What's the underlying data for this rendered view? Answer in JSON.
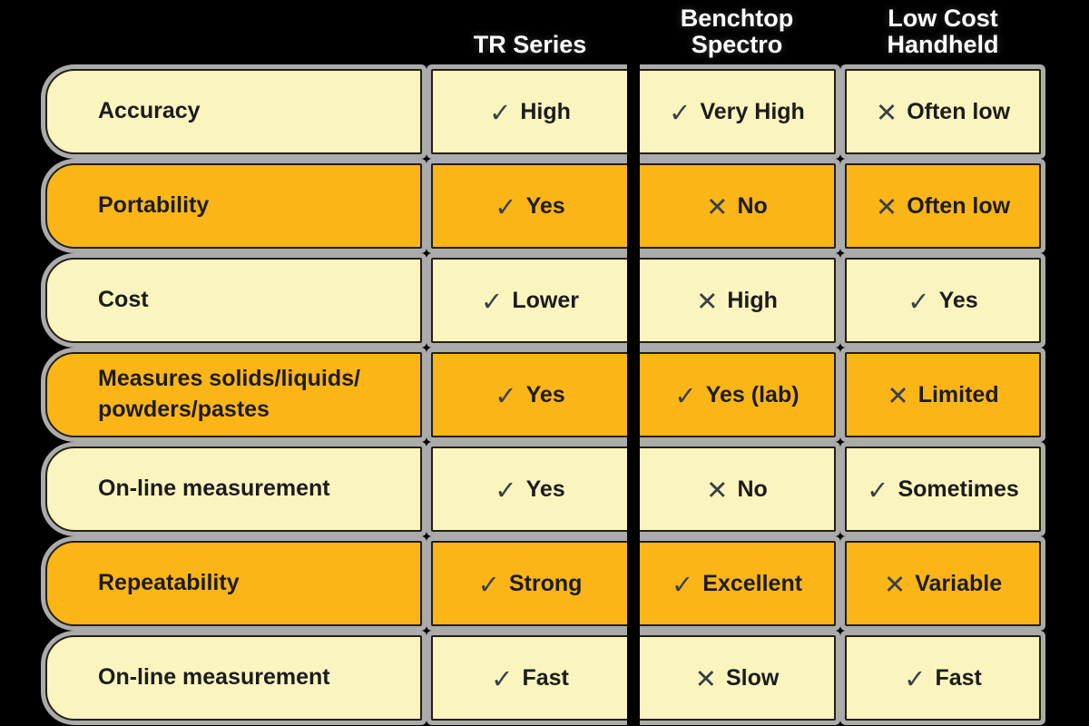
{
  "chart_data": {
    "type": "table",
    "title": "",
    "columns": [
      "TR Series",
      "Benchtop\nSpectro",
      "Low Cost\nHandheld"
    ],
    "rows": [
      {
        "label": "Accuracy",
        "cells": [
          {
            "icon": "check",
            "text": "High"
          },
          {
            "icon": "check",
            "text": "Very High"
          },
          {
            "icon": "cross",
            "text": "Often low"
          }
        ]
      },
      {
        "label": "Portability",
        "cells": [
          {
            "icon": "check",
            "text": "Yes"
          },
          {
            "icon": "cross",
            "text": "No"
          },
          {
            "icon": "cross",
            "text": "Often low"
          }
        ]
      },
      {
        "label": "Cost",
        "cells": [
          {
            "icon": "check",
            "text": "Lower"
          },
          {
            "icon": "cross",
            "text": "High"
          },
          {
            "icon": "check",
            "text": "Yes"
          }
        ]
      },
      {
        "label": "Measures solids/liquids/\npowders/pastes",
        "cells": [
          {
            "icon": "check",
            "text": "Yes"
          },
          {
            "icon": "check",
            "text": "Yes (lab)"
          },
          {
            "icon": "cross",
            "text": "Limited"
          }
        ]
      },
      {
        "label": "On-line measurement",
        "cells": [
          {
            "icon": "check",
            "text": "Yes"
          },
          {
            "icon": "cross",
            "text": "No"
          },
          {
            "icon": "check",
            "text": "Sometimes"
          }
        ]
      },
      {
        "label": "Repeatability",
        "cells": [
          {
            "icon": "check",
            "text": "Strong"
          },
          {
            "icon": "check",
            "text": "Excellent"
          },
          {
            "icon": "cross",
            "text": "Variable"
          }
        ]
      },
      {
        "label": "On-line measurement",
        "cells": [
          {
            "icon": "check",
            "text": "Fast"
          },
          {
            "icon": "cross",
            "text": "Slow"
          },
          {
            "icon": "check",
            "text": "Fast"
          }
        ]
      }
    ],
    "row_styles": [
      "light",
      "orange",
      "light",
      "orange",
      "light",
      "orange",
      "light"
    ],
    "legend_position": "none",
    "grid": false
  },
  "icons": {
    "check": "✓",
    "cross": "✕"
  },
  "colors": {
    "background": "#000000",
    "row_light": "#FAF4BE",
    "row_orange": "#FBB517",
    "gutter": "#ABABAB",
    "cell_border": "#241F10",
    "text": "#1C1C1C",
    "glyph": "#394046",
    "header_text": "#FFFFFF"
  }
}
